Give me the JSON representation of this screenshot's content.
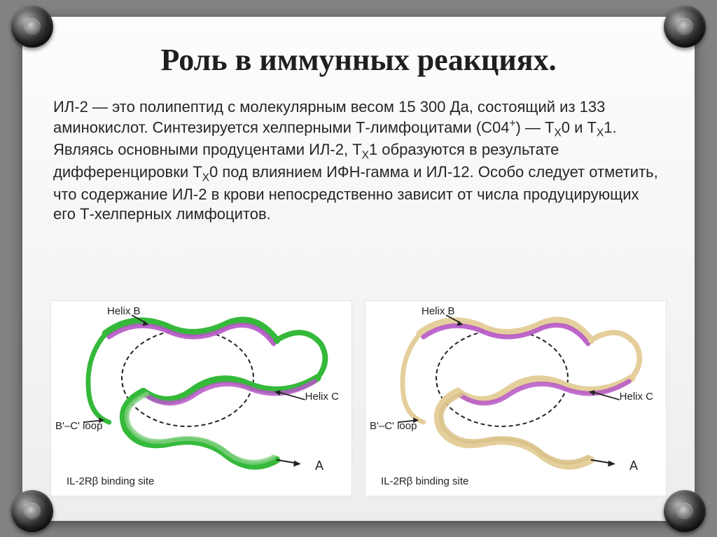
{
  "slide": {
    "title": "Роль в иммунных реакциях.",
    "body_html": "ИЛ-2 — это полипептид с молекулярным весом 15 300 Да, состоящий из 133 аминокислот. Синтезируется хелперными Т-лимфоцитами (С04<sup>+</sup>) — Т<sub>Х</sub>0 и Т<sub>Х</sub>1. Являясь основными продуцентами ИЛ-2, Т<sub>Х</sub>1 образуются в результате дифференцировки Т<sub>Х</sub>0 под влиянием ИФН-гамма и ИЛ-12. Особо следует отметить, что содержание ИЛ-2 в крови непосредственно зависит от числа продуцирующих его Т-хелперных лимфоцитов."
  },
  "figures": {
    "left": {
      "labels": {
        "helixB": "Helix B",
        "helixC": "Helix C",
        "loop": "B'–C' loop",
        "binding": "IL-2Rβ binding site",
        "A": "A"
      },
      "colors": {
        "primary": "#35b93a",
        "secondary": "#b657c7",
        "tertiary": "#7fd07f"
      }
    },
    "right": {
      "labels": {
        "helixB": "Helix B",
        "helixC": "Helix C",
        "loop": "B'–C' loop",
        "binding": "IL-2Rβ binding site",
        "A": "A"
      },
      "colors": {
        "primary": "#e4cf9c",
        "secondary": "#b657c7",
        "tertiary": "#d9c28a"
      }
    }
  },
  "style": {
    "background": "#828282",
    "slide_bg_top": "#fdfdfd",
    "slide_bg_bottom": "#ededed",
    "title_color": "#1f1f1f",
    "title_fontsize": 44,
    "body_fontsize": 22,
    "body_color": "#262626",
    "label_fontsize": 15
  }
}
